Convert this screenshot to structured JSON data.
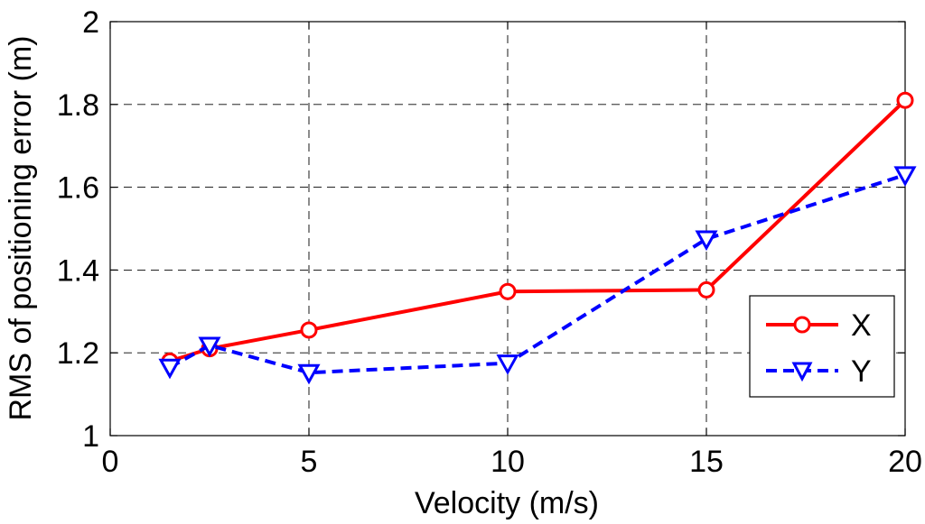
{
  "chart_data": {
    "type": "line",
    "title": "",
    "xlabel": "Velocity (m/s)",
    "ylabel": "RMS of positioning error (m)",
    "xlim": [
      0,
      20
    ],
    "ylim": [
      1,
      2
    ],
    "xticks": [
      0,
      5,
      10,
      15,
      20
    ],
    "xtick_labels": [
      "0",
      "5",
      "10",
      "15",
      "20"
    ],
    "yticks": [
      1,
      1.2,
      1.4,
      1.6,
      1.8,
      2
    ],
    "ytick_labels": [
      "1",
      "1.2",
      "1.4",
      "1.6",
      "1.8",
      "2"
    ],
    "grid": true,
    "legend_position": "bottom-right",
    "series": [
      {
        "name": "X",
        "color": "#ff0000",
        "line_style": "solid",
        "marker": "circle",
        "x": [
          1.5,
          2.5,
          5,
          10,
          15,
          20
        ],
        "y": [
          1.18,
          1.21,
          1.255,
          1.348,
          1.352,
          1.81
        ]
      },
      {
        "name": "Y",
        "color": "#0000ff",
        "line_style": "dashed",
        "marker": "triangle-down",
        "x": [
          1.5,
          2.5,
          5,
          10,
          15,
          20
        ],
        "y": [
          1.165,
          1.218,
          1.152,
          1.175,
          1.475,
          1.63
        ]
      }
    ]
  }
}
